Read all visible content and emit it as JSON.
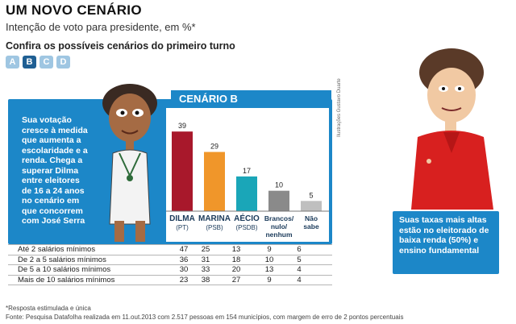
{
  "header": {
    "title": "UM NOVO CENÁRIO",
    "subtitle": "Intenção de voto para presidente, em %*",
    "scenarios_prompt": "Confira os possíveis cenários do primeiro turno"
  },
  "tabs": [
    {
      "label": "A",
      "active": false
    },
    {
      "label": "B",
      "active": true
    },
    {
      "label": "C",
      "active": false
    },
    {
      "label": "D",
      "active": false
    }
  ],
  "scenario_title": "CENÁRIO B",
  "left_note": "Sua votação cresce à medida que aumenta a escolaridade e a renda. Chega a superar Dilma entre eleitores de 16 a 24 anos no cenário em que concorrem com José Serra",
  "right_note": "Suas taxas mais altas estão no eleitorado de baixa renda (50%) e ensino fundamental",
  "credit": "Ilustrações Gustavo Duarte",
  "chart_data": {
    "type": "bar",
    "title": "CENÁRIO B",
    "categories": [
      {
        "name": "DILMA",
        "party": "(PT)"
      },
      {
        "name": "MARINA",
        "party": "(PSB)"
      },
      {
        "name": "AÉCIO",
        "party": "(PSDB)"
      },
      {
        "name": "Brancos/ nulo/ nenhum",
        "party": ""
      },
      {
        "name": "Não sabe",
        "party": ""
      }
    ],
    "values": [
      39,
      29,
      17,
      10,
      5
    ],
    "colors": [
      "#a8182b",
      "#f0962a",
      "#1aa6b8",
      "#8a8a8a",
      "#bfbfbf"
    ],
    "ylim": [
      0,
      45
    ],
    "grid": false,
    "legend": "none"
  },
  "table": {
    "rows": [
      {
        "label": "Até 2 salários mínimos",
        "values": [
          47,
          25,
          13,
          9,
          6
        ]
      },
      {
        "label": "De 2 a 5 salários mínimos",
        "values": [
          36,
          31,
          18,
          10,
          5
        ]
      },
      {
        "label": "De 5 a 10 salários mínimos",
        "values": [
          30,
          33,
          20,
          13,
          4
        ]
      },
      {
        "label": "Mais de 10 salários mínimos",
        "values": [
          23,
          38,
          27,
          9,
          4
        ]
      }
    ]
  },
  "footnote": "*Resposta estimulada e única",
  "source": "Fonte: Pesquisa Datafolha realizada em 11.out.2013 com 2.517 pessoas em 154 municípios, com margem de erro de 2 pontos percentuais"
}
